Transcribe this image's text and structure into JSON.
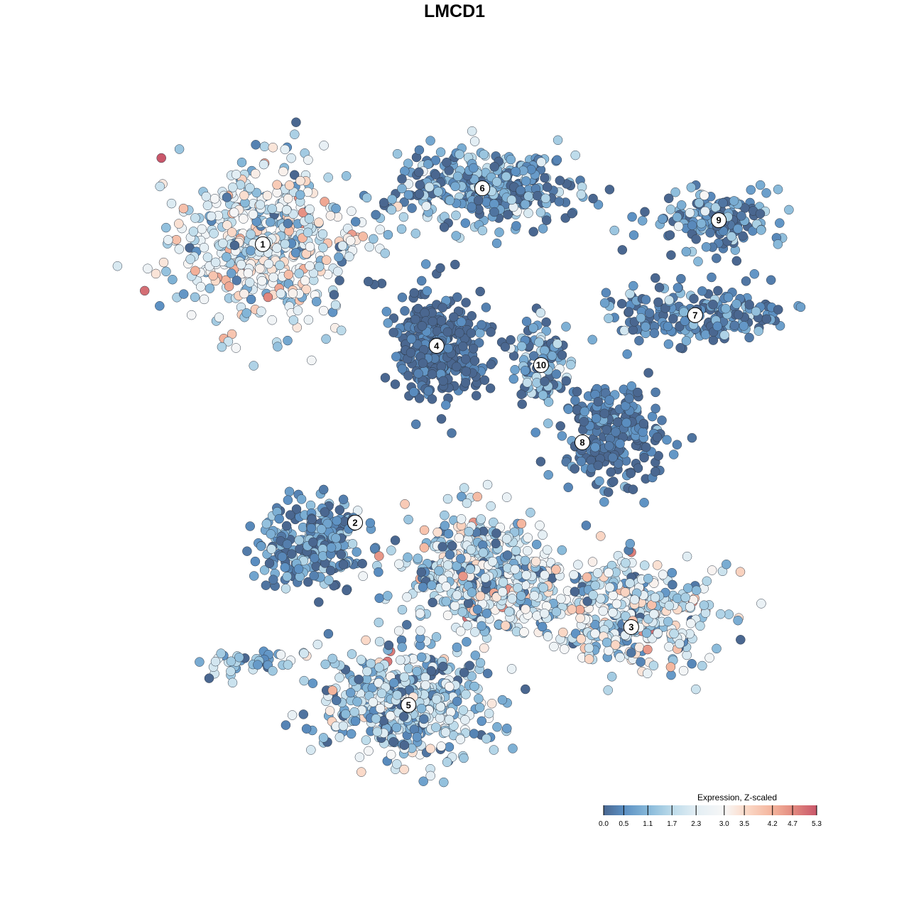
{
  "chart_data": {
    "type": "scatter",
    "title": "LMCD1",
    "xlabel": "",
    "ylabel": "",
    "xlim": [
      -10,
      11
    ],
    "ylim": [
      -10.5,
      10.5
    ],
    "grid": false,
    "legend": {
      "title": "Expression, Z-scaled",
      "placement": "bottom-right",
      "ticks": [
        0.0,
        0.5,
        1.1,
        1.7,
        2.3,
        3.0,
        3.5,
        4.2,
        4.7,
        5.3
      ],
      "tick_labels": [
        "0.0",
        "0.5",
        "1.1",
        "1.7",
        "2.3",
        "3.0",
        "3.5",
        "4.2",
        "4.7",
        "5.3"
      ],
      "range": [
        0.0,
        5.3
      ],
      "colors": [
        "#4a6790",
        "#5b8fc2",
        "#86b8d9",
        "#bcdbea",
        "#e3eef4",
        "#f7f7f7",
        "#fbdccb",
        "#f4b49c",
        "#e38b80",
        "#c9576a"
      ]
    },
    "clusters": [
      {
        "label": "1",
        "center": [
          -5.98,
          6.58
        ],
        "spread": [
          2.6,
          2.4
        ],
        "n": 520,
        "mean": 2.2,
        "sd": 1.1
      },
      {
        "label": "6",
        "center": [
          0.87,
          8.33
        ],
        "spread": [
          2.9,
          1.2
        ],
        "n": 330,
        "mean": 0.7,
        "sd": 0.8
      },
      {
        "label": "9",
        "center": [
          8.27,
          7.33
        ],
        "spread": [
          1.7,
          0.9
        ],
        "n": 150,
        "mean": 0.6,
        "sd": 0.7
      },
      {
        "label": "7",
        "center": [
          7.53,
          4.36
        ],
        "spread": [
          2.5,
          0.8
        ],
        "n": 200,
        "mean": 0.4,
        "sd": 0.6
      },
      {
        "label": "4",
        "center": [
          -0.56,
          3.4
        ],
        "spread": [
          1.3,
          1.5
        ],
        "n": 330,
        "mean": 0.1,
        "sd": 0.3
      },
      {
        "label": "10",
        "center": [
          2.7,
          2.8
        ],
        "spread": [
          0.9,
          1.2
        ],
        "n": 100,
        "mean": 0.7,
        "sd": 0.8
      },
      {
        "label": "8",
        "center": [
          5.0,
          0.6
        ],
        "spread": [
          1.5,
          1.5
        ],
        "n": 230,
        "mean": 0.2,
        "sd": 0.4
      },
      {
        "label": "2",
        "center": [
          -4.5,
          -2.8
        ],
        "spread": [
          1.6,
          1.2
        ],
        "n": 230,
        "mean": 0.6,
        "sd": 0.7
      },
      {
        "label": "",
        "center": [
          0.9,
          -3.8
        ],
        "spread": [
          2.2,
          1.6
        ],
        "n": 520,
        "mean": 1.9,
        "sd": 1.1
      },
      {
        "label": "3",
        "center": [
          5.5,
          -5.0
        ],
        "spread": [
          2.4,
          1.5
        ],
        "n": 380,
        "mean": 1.9,
        "sd": 1.1
      },
      {
        "label": "5",
        "center": [
          -1.4,
          -7.7
        ],
        "spread": [
          2.5,
          1.6
        ],
        "n": 480,
        "mean": 1.5,
        "sd": 1.0
      },
      {
        "label": "",
        "center": [
          -6.5,
          -6.5
        ],
        "spread": [
          1.5,
          0.4
        ],
        "n": 40,
        "mean": 1.4,
        "sd": 0.8
      }
    ],
    "label_positions": [
      {
        "label": "1",
        "at": [
          -6.0,
          6.58
        ]
      },
      {
        "label": "6",
        "at": [
          0.87,
          8.33
        ]
      },
      {
        "label": "9",
        "at": [
          8.27,
          7.33
        ]
      },
      {
        "label": "7",
        "at": [
          7.53,
          4.36
        ]
      },
      {
        "label": "4",
        "at": [
          -0.56,
          3.4
        ]
      },
      {
        "label": "10",
        "at": [
          2.71,
          2.8
        ]
      },
      {
        "label": "8",
        "at": [
          4.0,
          0.38
        ]
      },
      {
        "label": "2",
        "at": [
          -3.11,
          -2.13
        ]
      },
      {
        "label": "3",
        "at": [
          5.53,
          -5.4
        ]
      },
      {
        "label": "5",
        "at": [
          -1.44,
          -7.84
        ]
      }
    ]
  }
}
